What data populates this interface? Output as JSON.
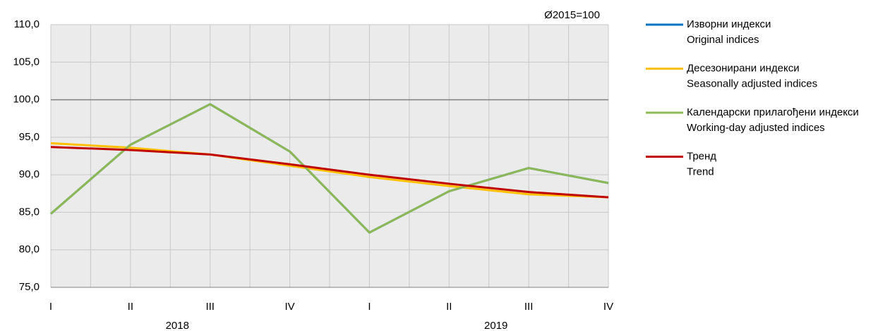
{
  "chart_data": {
    "type": "line",
    "annotation": "Ø2015=100",
    "categories": [
      "I",
      "II",
      "III",
      "IV",
      "I",
      "II",
      "III",
      "IV"
    ],
    "years": [
      "2018",
      "2019"
    ],
    "ylim": [
      75,
      110
    ],
    "yticks": [
      {
        "value": 75,
        "label": "75,0"
      },
      {
        "value": 80,
        "label": "80,0"
      },
      {
        "value": 85,
        "label": "85,0"
      },
      {
        "value": 90,
        "label": "90,0"
      },
      {
        "value": 95,
        "label": "95,0"
      },
      {
        "value": 100,
        "label": "100,0"
      },
      {
        "value": 105,
        "label": "105,0"
      },
      {
        "value": 110,
        "label": "110,0"
      }
    ],
    "reference_line": 100,
    "grid": true,
    "legend": "right",
    "series": [
      {
        "name": "Изворни индекси",
        "subname": "Original indices",
        "color": "#0070c0",
        "values": [
          84.8,
          94.0,
          99.4,
          93.1,
          82.3,
          87.8,
          90.9,
          88.9
        ]
      },
      {
        "name": "Десезонирани индекси",
        "subname": "Seasonally adjusted indices",
        "color": "#ffc000",
        "values": [
          94.2,
          93.6,
          92.7,
          91.2,
          89.7,
          88.5,
          87.4,
          87.0
        ]
      },
      {
        "name": "Календарски прилагођени индекси",
        "subname": "Working-day adjusted indices",
        "color": "#8db854",
        "values": [
          84.8,
          94.0,
          99.4,
          93.1,
          82.3,
          87.8,
          90.9,
          88.9
        ]
      },
      {
        "name": "Тренд",
        "subname": "Trend",
        "color": "#c00000",
        "values": [
          93.7,
          93.3,
          92.7,
          91.4,
          90.0,
          88.8,
          87.7,
          87.0
        ]
      }
    ]
  }
}
